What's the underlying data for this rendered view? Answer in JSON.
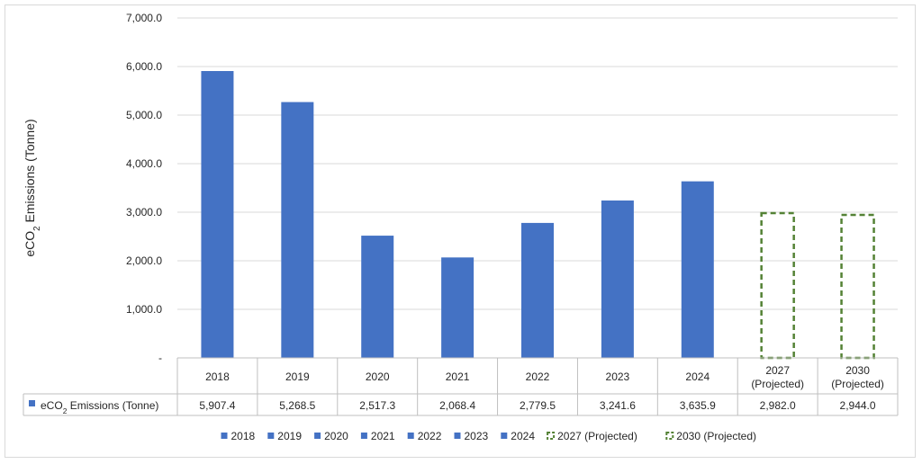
{
  "chart_data": {
    "type": "bar",
    "ylabel_parts": [
      "eCO",
      "2",
      " Emissions (Tonne)"
    ],
    "ylim": [
      0,
      7000
    ],
    "yticks": [
      {
        "value": 0,
        "label": "-"
      },
      {
        "value": 1000,
        "label": "1,000.0"
      },
      {
        "value": 2000,
        "label": "2,000.0"
      },
      {
        "value": 3000,
        "label": "3,000.0"
      },
      {
        "value": 4000,
        "label": "4,000.0"
      },
      {
        "value": 5000,
        "label": "5,000.0"
      },
      {
        "value": 6000,
        "label": "6,000.0"
      },
      {
        "value": 7000,
        "label": "7,000.0"
      }
    ],
    "grid": true,
    "categories": [
      {
        "label": [
          "2018"
        ],
        "value": 5907.4,
        "value_label": "5,907.4",
        "projected": false
      },
      {
        "label": [
          "2019"
        ],
        "value": 5268.5,
        "value_label": "5,268.5",
        "projected": false
      },
      {
        "label": [
          "2020"
        ],
        "value": 2517.3,
        "value_label": "2,517.3",
        "projected": false
      },
      {
        "label": [
          "2021"
        ],
        "value": 2068.4,
        "value_label": "2,068.4",
        "projected": false
      },
      {
        "label": [
          "2022"
        ],
        "value": 2779.5,
        "value_label": "2,779.5",
        "projected": false
      },
      {
        "label": [
          "2023"
        ],
        "value": 3241.6,
        "value_label": "3,241.6",
        "projected": false
      },
      {
        "label": [
          "2024"
        ],
        "value": 3635.9,
        "value_label": "3,635.9",
        "projected": false
      },
      {
        "label": [
          "2027",
          "(Projected)"
        ],
        "value": 2982.0,
        "value_label": "2,982.0",
        "projected": true
      },
      {
        "label": [
          "2030",
          "(Projected)"
        ],
        "value": 2944.0,
        "value_label": "2,944.0",
        "projected": true
      }
    ],
    "table_series_label_parts": [
      "eCO",
      "2",
      " Emissions (Tonne)"
    ],
    "legend": {
      "placement": "bottom",
      "entries": [
        {
          "label": "2018",
          "style": "solid"
        },
        {
          "label": "2019",
          "style": "solid"
        },
        {
          "label": "2020",
          "style": "solid"
        },
        {
          "label": "2021",
          "style": "solid"
        },
        {
          "label": "2022",
          "style": "solid"
        },
        {
          "label": "2023",
          "style": "solid"
        },
        {
          "label": "2024",
          "style": "solid"
        },
        {
          "label": "2027 (Projected)",
          "style": "dashed"
        },
        {
          "label": "2030 (Projected)",
          "style": "dashed"
        }
      ]
    },
    "colors": {
      "bar": "#4472c4",
      "projected_outline": "#548235",
      "grid": "#d9d9d9",
      "table_border": "#bfbfbf",
      "text": "#262626"
    }
  }
}
